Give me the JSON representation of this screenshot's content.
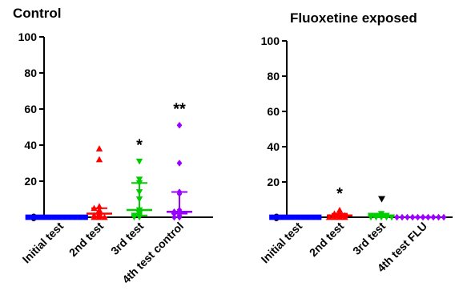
{
  "chart_data": [
    {
      "type": "scatter",
      "title": "Control",
      "ylim": [
        0,
        100
      ],
      "yticks": [
        0,
        20,
        40,
        60,
        80,
        100
      ],
      "grid": false,
      "categories": [
        "Initial test",
        "2nd test",
        "3rd test",
        "4th test control"
      ],
      "series": [
        {
          "category": "Initial test",
          "marker": "square",
          "color": "#0000ff",
          "values": [
            0,
            0,
            0,
            0,
            0,
            0,
            0,
            0,
            0,
            0,
            0,
            0
          ],
          "median": 0,
          "q1": 0,
          "q3": 0,
          "significance": ""
        },
        {
          "category": "2nd test",
          "marker": "triangle-up",
          "color": "#ff0000",
          "values": [
            38,
            32,
            6,
            5,
            4,
            3,
            2,
            1,
            1,
            0,
            0,
            0
          ],
          "median": 2,
          "q1": 0,
          "q3": 5,
          "significance": ""
        },
        {
          "category": "3rd test",
          "marker": "triangle-down",
          "color": "#00cc00",
          "values": [
            31,
            21,
            19,
            14,
            10,
            4,
            3,
            2,
            1,
            1,
            0,
            0
          ],
          "median": 4,
          "q1": 1,
          "q3": 19,
          "significance": "*"
        },
        {
          "category": "4th test control",
          "marker": "diamond",
          "color": "#9900ff",
          "values": [
            51,
            30,
            14,
            13,
            4,
            3,
            3,
            2,
            2,
            1,
            0,
            0
          ],
          "median": 3,
          "q1": 2,
          "q3": 14,
          "significance": "**"
        }
      ]
    },
    {
      "type": "scatter",
      "title": "Fluoxetine exposed",
      "ylim": [
        0,
        100
      ],
      "yticks": [
        0,
        20,
        40,
        60,
        80,
        100
      ],
      "grid": false,
      "categories": [
        "Initial test",
        "2nd test",
        "3rd test",
        "4th test FLU"
      ],
      "series": [
        {
          "category": "Initial test",
          "marker": "square",
          "color": "#0000ff",
          "values": [
            0,
            0,
            0,
            0,
            0,
            0,
            0,
            0,
            0,
            0
          ],
          "median": 0,
          "q1": 0,
          "q3": 0,
          "significance": ""
        },
        {
          "category": "2nd test",
          "marker": "triangle-up",
          "color": "#ff0000",
          "values": [
            4,
            2,
            2,
            1,
            1,
            1,
            0,
            0,
            0,
            0
          ],
          "median": 1,
          "q1": 0,
          "q3": 2,
          "significance": "*"
        },
        {
          "category": "3rd test",
          "marker": "triangle-down",
          "color": "#00cc00",
          "values": [
            2,
            1,
            1,
            1,
            1,
            0,
            0,
            0,
            0,
            0
          ],
          "median": 1,
          "q1": 0,
          "q3": 1,
          "significance": "▼"
        },
        {
          "category": "4th test FLU",
          "marker": "diamond",
          "color": "#9900ff",
          "values": [
            0,
            0,
            0,
            0,
            0,
            0,
            0,
            0,
            0,
            0
          ],
          "median": 0,
          "q1": 0,
          "q3": 0,
          "significance": ""
        }
      ]
    }
  ]
}
